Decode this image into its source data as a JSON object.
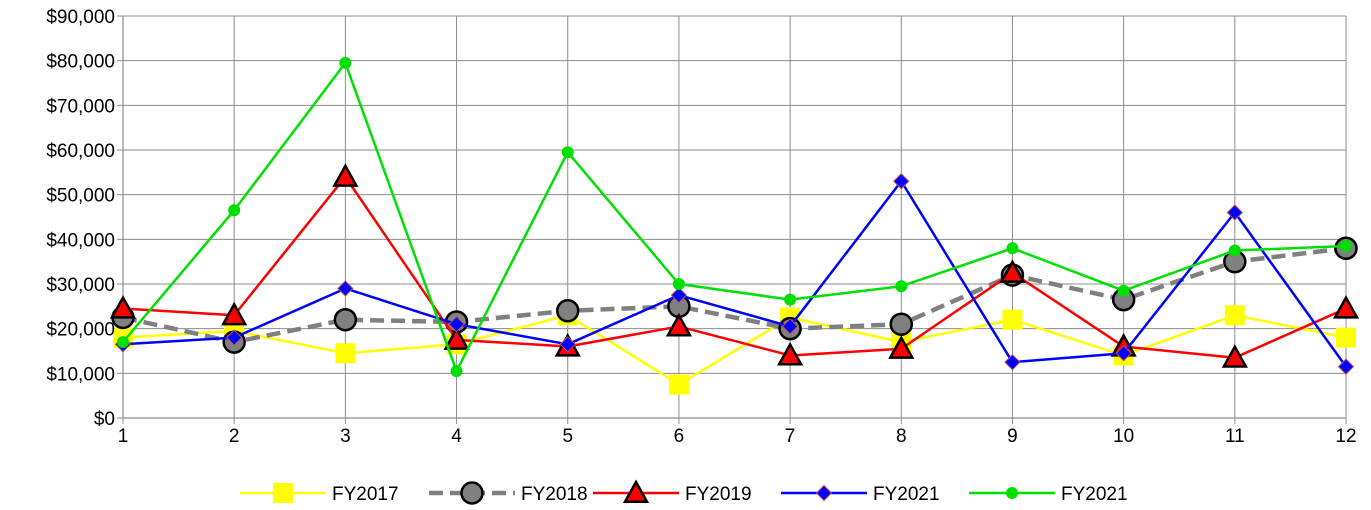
{
  "chart_data": {
    "type": "line",
    "title": "",
    "xlabel": "",
    "ylabel": "",
    "categories": [
      "1",
      "2",
      "3",
      "4",
      "5",
      "6",
      "7",
      "8",
      "9",
      "10",
      "11",
      "12"
    ],
    "x": [
      1,
      2,
      3,
      4,
      5,
      6,
      7,
      8,
      9,
      10,
      11,
      12
    ],
    "ylim": [
      0,
      90000
    ],
    "y_ticks": [
      0,
      10000,
      20000,
      30000,
      40000,
      50000,
      60000,
      70000,
      80000,
      90000
    ],
    "y_tick_labels": [
      "$0",
      "$10,000",
      "$20,000",
      "$30,000",
      "$40,000",
      "$50,000",
      "$60,000",
      "$70,000",
      "$80,000",
      "$90,000"
    ],
    "grid": true,
    "legend_position": "bottom",
    "series": [
      {
        "name": "FY2017",
        "color": "#ffff00",
        "marker": "square",
        "line_style": "solid",
        "values": [
          18000,
          19500,
          14500,
          16500,
          23000,
          7500,
          22500,
          17000,
          22000,
          14000,
          23000,
          18000
        ]
      },
      {
        "name": "FY2018",
        "color": "#808080",
        "marker": "circle",
        "line_style": "dashed",
        "values": [
          22500,
          17000,
          22000,
          21500,
          24000,
          25000,
          20000,
          21000,
          32000,
          26500,
          35000,
          38000
        ]
      },
      {
        "name": "FY2019",
        "color": "#ff0000",
        "marker": "triangle",
        "line_style": "solid",
        "values": [
          24500,
          23000,
          54000,
          17500,
          16000,
          20500,
          14000,
          15500,
          32500,
          16000,
          13500,
          24500
        ]
      },
      {
        "name": "FY2021",
        "color": "#0000ff",
        "marker": "diamond",
        "line_style": "solid",
        "values": [
          16500,
          18000,
          29000,
          21000,
          16500,
          27500,
          20500,
          53000,
          12500,
          14500,
          46000,
          11500
        ]
      },
      {
        "name": "FY2021",
        "color": "#00e000",
        "marker": "dot",
        "line_style": "solid",
        "values": [
          17000,
          46500,
          79500,
          10500,
          59500,
          30000,
          26500,
          29500,
          38000,
          28500,
          37500,
          38500
        ]
      }
    ]
  }
}
